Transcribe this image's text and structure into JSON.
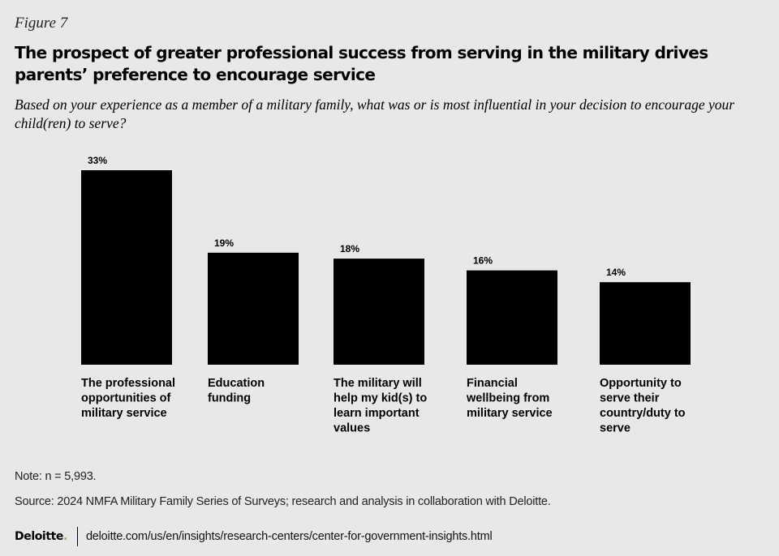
{
  "figure_label": "Figure 7",
  "title": "The prospect of greater professional success from serving in the military drives parents’ preference to encourage service",
  "subtitle": "Based on your experience as a member of a military family, what was or is most influential in your decision to encourage your child(ren) to serve?",
  "note": "Note: n = 5,993.",
  "source": "Source: 2024 NMFA Military Family Series of Surveys; research and analysis in collaboration with Deloitte.",
  "footer": {
    "logo": "Deloitte",
    "logo_dot": ".",
    "url": "deloitte.com/us/en/insights/research-centers/center-for-government-insights.html"
  },
  "colors": {
    "bar": "#000000",
    "background": "#e8e8e8",
    "logo_dot": "#86bc25"
  },
  "chart_data": {
    "type": "bar",
    "title": "",
    "xlabel": "",
    "ylabel": "",
    "ylim": [
      0,
      33
    ],
    "grid": false,
    "categories": [
      [
        "The professional",
        "opportunities of",
        "military service"
      ],
      [
        "Education",
        "funding"
      ],
      [
        "The military will",
        "help my kid(s) to",
        "learn important",
        "values"
      ],
      [
        "Financial",
        "wellbeing from",
        "military service"
      ],
      [
        "Opportunity to",
        "serve their",
        "country/duty to",
        "serve"
      ]
    ],
    "values": [
      33,
      19,
      18,
      16,
      14
    ],
    "value_labels": [
      "33%",
      "19%",
      "18%",
      "16%",
      "14%"
    ]
  }
}
